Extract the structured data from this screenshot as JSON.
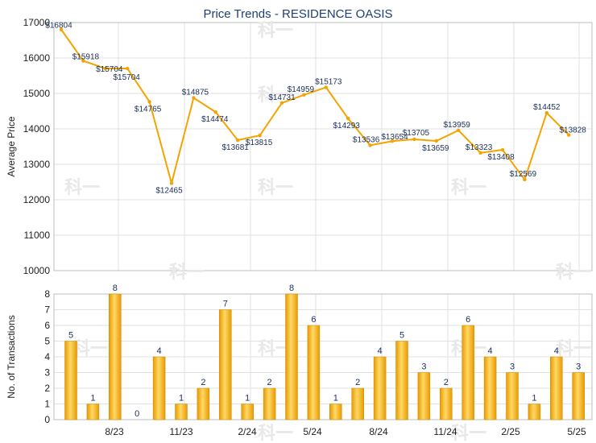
{
  "chart_data": [
    {
      "type": "line",
      "title": "Price Trends - RESIDENCE OASIS",
      "xlabel": "",
      "ylabel": "Average Price",
      "ylim": [
        10000,
        17000
      ],
      "yticks": [
        "10000",
        "11000",
        "12000",
        "13000",
        "14000",
        "15000",
        "16000",
        "17000"
      ],
      "grid": true,
      "color": "#f5a300",
      "series": [
        {
          "values": [
            16804,
            15918,
            15704,
            15704,
            14765,
            12465,
            14875,
            14474,
            13681,
            13815,
            14731,
            14959,
            15173,
            14293,
            13536,
            13654,
            13705,
            13659,
            13959,
            13323,
            13408,
            12569,
            14452,
            13828
          ],
          "labels": [
            "$16804",
            "$15918",
            "$15704",
            "$15704",
            "$14765",
            "$12465",
            "$14875",
            "$14474",
            "$13681",
            "$13815",
            "$14731",
            "$14959",
            "$15173",
            "$14293",
            "$13536",
            "$13654",
            "$13705",
            "$13659",
            "$13959",
            "$13323",
            "$13408",
            "$12569",
            "$14452",
            "$13828"
          ]
        }
      ]
    },
    {
      "type": "bar",
      "xlabel": "",
      "ylabel": "No. of Transactions",
      "ylim": [
        0,
        8
      ],
      "yticks": [
        "0",
        "1",
        "2",
        "3",
        "4",
        "5",
        "6",
        "7",
        "8"
      ],
      "categories": [
        "8/23",
        "11/23",
        "2/24",
        "5/24",
        "8/24",
        "11/24",
        "2/25",
        "5/25"
      ],
      "grid": true,
      "color": "#f5b000",
      "values": [
        5,
        1,
        8,
        0,
        4,
        1,
        2,
        7,
        1,
        2,
        8,
        6,
        1,
        2,
        4,
        5,
        3,
        2,
        6,
        4,
        3,
        1,
        4,
        3
      ],
      "labels": [
        "5",
        "1",
        "8",
        "0",
        "4",
        "1",
        "2",
        "7",
        "1",
        "2",
        "8",
        "6",
        "1",
        "2",
        "4",
        "5",
        "3",
        "2",
        "6",
        "4",
        "3",
        "1",
        "4",
        "3"
      ]
    }
  ]
}
